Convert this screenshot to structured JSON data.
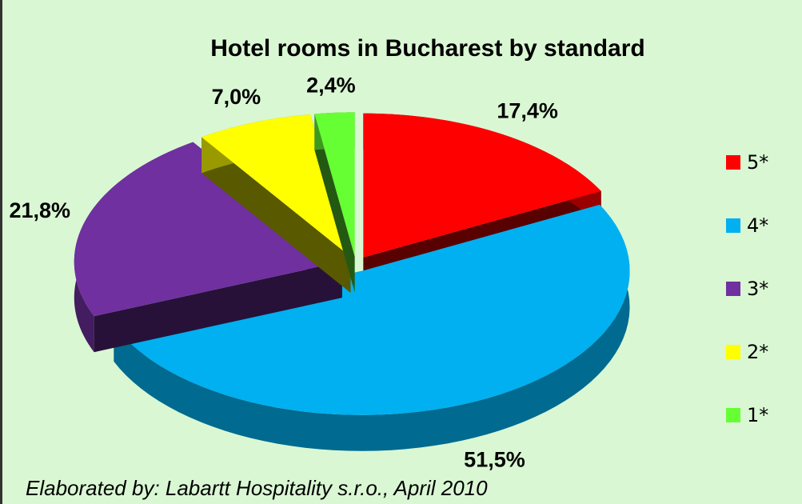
{
  "chart_data": {
    "type": "pie",
    "title": "Hotel rooms in Bucharest by standard",
    "categories": [
      "5*",
      "4*",
      "3*",
      "2*",
      "1*"
    ],
    "values": [
      17.4,
      51.5,
      21.8,
      7.0,
      2.4
    ],
    "value_labels": [
      "17,4%",
      "51,5%",
      "21,8%",
      "7,0%",
      "2,4%"
    ],
    "colors": [
      "#ff0000",
      "#00b0f0",
      "#7030a0",
      "#ffff00",
      "#66ff33"
    ],
    "legend": "right",
    "note": "Elaborated by: Labartt Hospitality s.r.o., April 2010"
  }
}
